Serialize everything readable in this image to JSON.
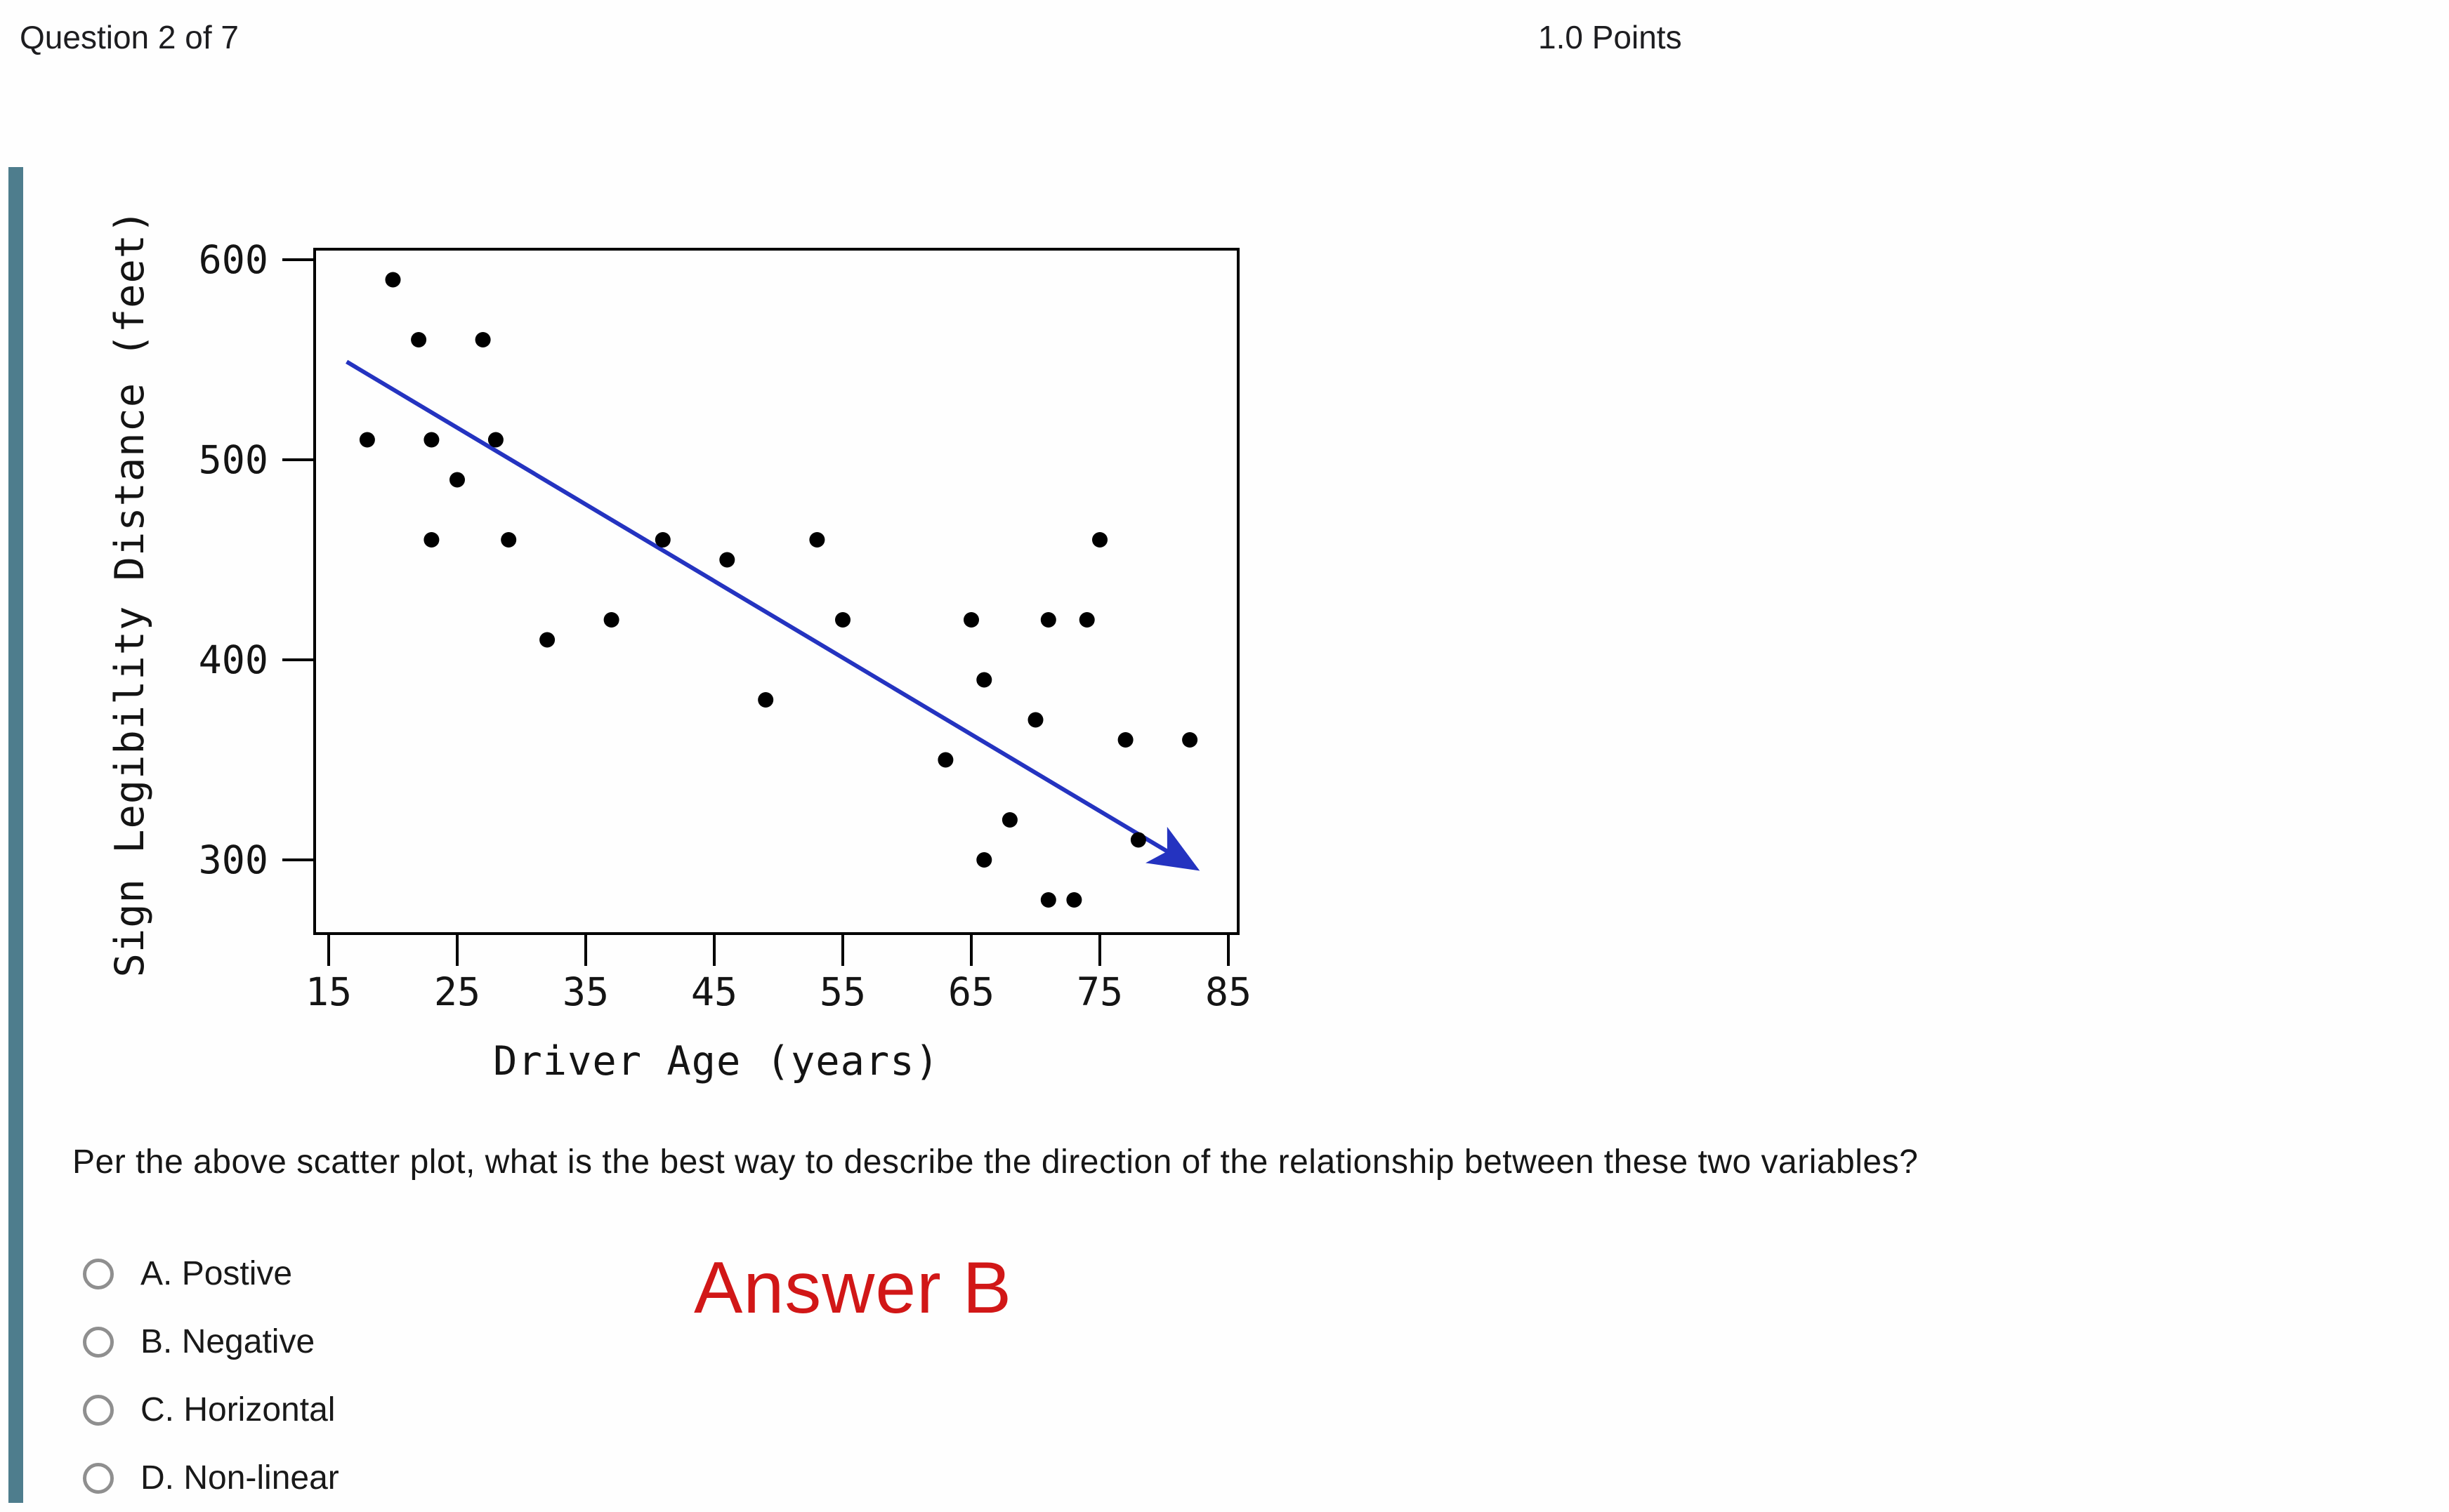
{
  "header": {
    "question_counter": "Question 2 of 7",
    "points_label": "1.0 Points"
  },
  "colors": {
    "accent_bar": "#4e7d8d",
    "trend_line": "#2433c0",
    "point_color": "#000000",
    "answer_text": "#d11717",
    "radio_ring": "#8f8f8f"
  },
  "chart_data": {
    "type": "scatter",
    "title": "",
    "xlabel": "Driver Age (years)",
    "ylabel": "Sign Legibility Distance (feet)",
    "x_ticks": [
      15,
      25,
      35,
      45,
      55,
      65,
      75,
      85
    ],
    "y_ticks": [
      300,
      400,
      500,
      600
    ],
    "xlim": [
      14,
      86.5
    ],
    "ylim": [
      270,
      606
    ],
    "grid": false,
    "legend": "none",
    "points": [
      [
        18,
        510
      ],
      [
        20,
        590
      ],
      [
        22,
        560
      ],
      [
        23,
        510
      ],
      [
        23,
        460
      ],
      [
        25,
        490
      ],
      [
        27,
        560
      ],
      [
        28,
        510
      ],
      [
        29,
        460
      ],
      [
        32,
        410
      ],
      [
        37,
        420
      ],
      [
        41,
        460
      ],
      [
        46,
        450
      ],
      [
        49,
        380
      ],
      [
        53,
        460
      ],
      [
        55,
        420
      ],
      [
        63,
        350
      ],
      [
        65,
        420
      ],
      [
        66,
        390
      ],
      [
        66,
        300
      ],
      [
        68,
        320
      ],
      [
        70,
        370
      ],
      [
        71,
        420
      ],
      [
        71,
        280
      ],
      [
        73,
        280
      ],
      [
        74,
        420
      ],
      [
        75,
        460
      ],
      [
        77,
        360
      ],
      [
        78,
        310
      ],
      [
        82,
        360
      ]
    ],
    "trend_line": {
      "x1": 16.4,
      "y1": 549,
      "x2": 82.4,
      "y2": 296,
      "color": "#2433c0",
      "arrow_at_end": true
    }
  },
  "question": {
    "text": "Per the above scatter plot, what is the best way to describe the direction of the relationship between these two variables?"
  },
  "options": [
    {
      "key": "A",
      "label": "A. Postive"
    },
    {
      "key": "B",
      "label": "B. Negative"
    },
    {
      "key": "C",
      "label": "C. Horizontal"
    },
    {
      "key": "D",
      "label": "D. Non-linear"
    }
  ],
  "annotation": {
    "answer_text": "Answer B"
  }
}
